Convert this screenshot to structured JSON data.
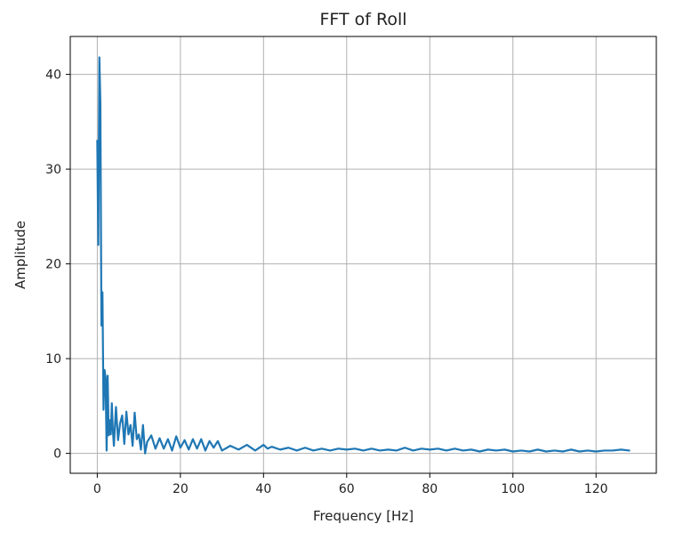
{
  "chart_data": {
    "type": "line",
    "title": "FFT of Roll",
    "xlabel": "Frequency [Hz]",
    "ylabel": "Amplitude",
    "xlim": [
      -6.5,
      134.5
    ],
    "ylim": [
      -2.1,
      44.0
    ],
    "xticks": [
      0,
      20,
      40,
      60,
      80,
      100,
      120
    ],
    "yticks": [
      0,
      10,
      20,
      30,
      40
    ],
    "xtick_labels": [
      "0",
      "20",
      "40",
      "60",
      "80",
      "100",
      "120"
    ],
    "ytick_labels": [
      "0",
      "10",
      "20",
      "30",
      "40"
    ],
    "grid": true,
    "legend": "none",
    "line_color": "#1f77b4",
    "series": [
      {
        "x": [
          0.0,
          0.25,
          0.5,
          0.75,
          1.0,
          1.25,
          1.5,
          1.75,
          2.0,
          2.25,
          2.5,
          2.75,
          3.0,
          3.25,
          3.5,
          3.75,
          4.0,
          4.5,
          5.0,
          5.5,
          6.0,
          6.5,
          7.0,
          7.5,
          8.0,
          8.5,
          9.0,
          9.5,
          10.0,
          10.5,
          11.0,
          11.5,
          12.0,
          13.0,
          14.0,
          15.0,
          16.0,
          17.0,
          18.0,
          19.0,
          20.0,
          21.0,
          22.0,
          23.0,
          24.0,
          25.0,
          26.0,
          27.0,
          28.0,
          29.0,
          30.0,
          32.0,
          34.0,
          36.0,
          38.0,
          40.0,
          41.0,
          42.0,
          44.0,
          46.0,
          48.0,
          50.0,
          52.0,
          54.0,
          56.0,
          58.0,
          60.0,
          62.0,
          64.0,
          66.0,
          68.0,
          70.0,
          72.0,
          74.0,
          76.0,
          78.0,
          80.0,
          82.0,
          84.0,
          86.0,
          88.0,
          90.0,
          92.0,
          94.0,
          96.0,
          98.0,
          100.0,
          102.0,
          104.0,
          106.0,
          108.0,
          110.0,
          112.0,
          114.0,
          116.0,
          118.0,
          120.0,
          122.0,
          124.0,
          126.0,
          128.0
        ],
        "values": [
          33.0,
          22.0,
          41.8,
          37.0,
          13.5,
          17.0,
          4.6,
          8.8,
          8.0,
          0.3,
          8.2,
          1.9,
          3.5,
          2.0,
          5.3,
          2.5,
          0.8,
          4.9,
          1.4,
          3.2,
          4.0,
          1.0,
          4.4,
          2.0,
          3.0,
          0.8,
          4.3,
          1.5,
          2.0,
          0.4,
          3.0,
          0.0,
          1.2,
          1.9,
          0.5,
          1.6,
          0.5,
          1.5,
          0.3,
          1.8,
          0.6,
          1.4,
          0.4,
          1.5,
          0.5,
          1.5,
          0.3,
          1.3,
          0.6,
          1.3,
          0.3,
          0.8,
          0.4,
          0.9,
          0.3,
          0.9,
          0.5,
          0.7,
          0.4,
          0.6,
          0.3,
          0.6,
          0.3,
          0.5,
          0.3,
          0.5,
          0.4,
          0.5,
          0.3,
          0.5,
          0.3,
          0.4,
          0.3,
          0.6,
          0.3,
          0.5,
          0.4,
          0.5,
          0.3,
          0.5,
          0.3,
          0.4,
          0.2,
          0.4,
          0.3,
          0.4,
          0.2,
          0.3,
          0.2,
          0.4,
          0.2,
          0.3,
          0.2,
          0.4,
          0.2,
          0.3,
          0.2,
          0.3,
          0.3,
          0.4,
          0.3
        ]
      }
    ]
  }
}
